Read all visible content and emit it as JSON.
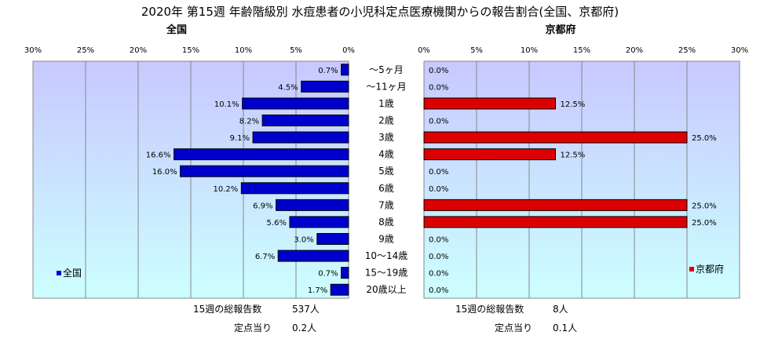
{
  "title": "2020年 第15週 年齢階級別 水痘患者の小児科定点医療機関からの報告割合(全国、京都府)",
  "colors": {
    "national_bar": "#0000cc",
    "kyoto_bar": "#dd0000",
    "plot_top": "#c8c8ff",
    "plot_bottom": "#ccffff",
    "gridline": "#888888"
  },
  "chart_data": [
    {
      "type": "bar",
      "orientation": "horizontal",
      "direction": "right-to-left",
      "panel_title": "全国",
      "legend": "全国",
      "legend_position": "bottom-left",
      "xlim": [
        0,
        30
      ],
      "x_ticks": [
        30,
        25,
        20,
        15,
        10,
        5,
        0
      ],
      "tick_labels": [
        "30%",
        "25%",
        "20%",
        "15%",
        "10%",
        "5%",
        "0%"
      ],
      "grid": true,
      "categories": [
        "～5ヶ月",
        "～11ヶ月",
        "1歳",
        "2歳",
        "3歳",
        "4歳",
        "5歳",
        "6歳",
        "7歳",
        "8歳",
        "9歳",
        "10～14歳",
        "15～19歳",
        "20歳以上"
      ],
      "values": [
        0.7,
        4.5,
        10.1,
        8.2,
        9.1,
        16.6,
        16.0,
        10.2,
        6.9,
        5.6,
        3.0,
        6.7,
        0.7,
        1.7
      ],
      "value_labels": [
        "0.7%",
        "4.5%",
        "10.1%",
        "8.2%",
        "9.1%",
        "16.6%",
        "16.0%",
        "10.2%",
        "6.9%",
        "5.6%",
        "3.0%",
        "6.7%",
        "0.7%",
        "1.7%"
      ]
    },
    {
      "type": "bar",
      "orientation": "horizontal",
      "direction": "left-to-right",
      "panel_title": "京都府",
      "legend": "京都府",
      "legend_position": "bottom-right",
      "xlim": [
        0,
        30
      ],
      "x_ticks": [
        0,
        5,
        10,
        15,
        20,
        25,
        30
      ],
      "tick_labels": [
        "0%",
        "5%",
        "10%",
        "15%",
        "20%",
        "25%",
        "30%"
      ],
      "grid": true,
      "categories": [
        "～5ヶ月",
        "～11ヶ月",
        "1歳",
        "2歳",
        "3歳",
        "4歳",
        "5歳",
        "6歳",
        "7歳",
        "8歳",
        "9歳",
        "10～14歳",
        "15～19歳",
        "20歳以上"
      ],
      "values": [
        0.0,
        0.0,
        12.5,
        0.0,
        25.0,
        12.5,
        0.0,
        0.0,
        25.0,
        25.0,
        0.0,
        0.0,
        0.0,
        0.0
      ],
      "value_labels": [
        "0.0%",
        "0.0%",
        "12.5%",
        "0.0%",
        "25.0%",
        "12.5%",
        "0.0%",
        "0.0%",
        "25.0%",
        "25.0%",
        "0.0%",
        "0.0%",
        "0.0%",
        "0.0%"
      ]
    }
  ],
  "footer": {
    "national": {
      "total_label": "15週の総報告数",
      "total_value": "537人",
      "per_site_label": "定点当り",
      "per_site_value": "0.2人"
    },
    "kyoto": {
      "total_label": "15週の総報告数",
      "total_value": "8人",
      "per_site_label": "定点当り",
      "per_site_value": "0.1人"
    }
  }
}
